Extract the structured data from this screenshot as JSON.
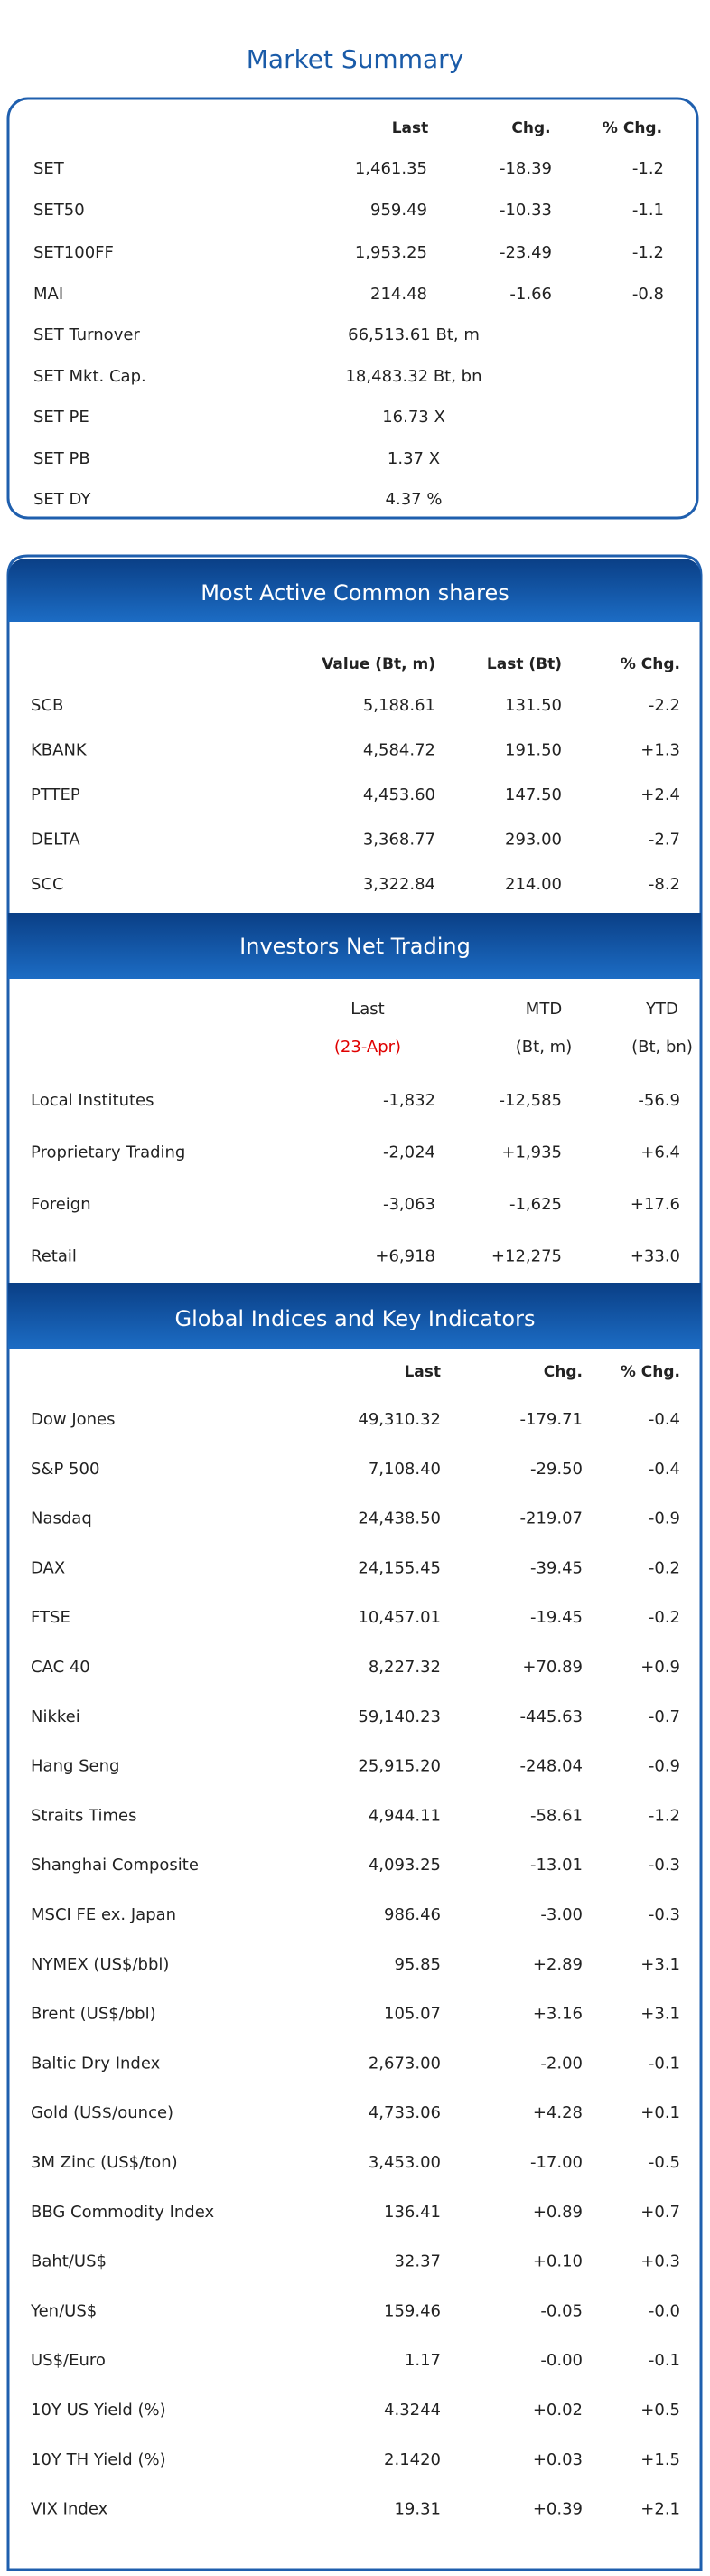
{
  "market_summary": {
    "title": "Market Summary",
    "headers": [
      "Last",
      "Chg.",
      "% Chg."
    ],
    "rows": [
      [
        "SET",
        "1,461.35",
        "-18.39",
        "-1.2"
      ],
      [
        "SET50",
        "959.49",
        "-10.33",
        "-1.1"
      ],
      [
        "SET100FF",
        "1,953.25",
        "-23.49",
        "-1.2"
      ],
      [
        "MAI",
        "214.48",
        "-1.66",
        "-0.8"
      ]
    ],
    "extra_rows": [
      [
        "SET Turnover",
        "66,513.61 Bt, m"
      ],
      [
        "SET Mkt. Cap.",
        "18,483.32 Bt, bn"
      ],
      [
        "SET PE",
        "16.73 X"
      ],
      [
        "SET PB",
        "1.37 X"
      ],
      [
        "SET DY",
        "4.37 %"
      ]
    ]
  },
  "most_active": {
    "title": "Most Active Common shares",
    "headers": [
      "Value (Bt, m)",
      "Last (Bt)",
      "% Chg."
    ],
    "rows": [
      [
        "SCB",
        "5,188.61",
        "131.50",
        "-2.2"
      ],
      [
        "KBANK",
        "4,584.72",
        "191.50",
        "+1.3"
      ],
      [
        "PTTEP",
        "4,453.60",
        "147.50",
        "+2.4"
      ],
      [
        "DELTA",
        "3,368.77",
        "293.00",
        "-2.7"
      ],
      [
        "SCC",
        "3,322.84",
        "214.00",
        "-8.2"
      ]
    ]
  },
  "investors": {
    "title": "Investors Net Trading",
    "headers": [
      "Last",
      "MTD",
      "YTD"
    ],
    "subheaders": [
      "(23-Apr)",
      "(Bt, m)",
      "(Bt, bn)"
    ],
    "rows": [
      [
        "Local Institutes",
        "-1,832",
        "-12,585",
        "-56.9"
      ],
      [
        "Proprietary Trading",
        "-2,024",
        "+1,935",
        "+6.4"
      ],
      [
        "Foreign",
        "-3,063",
        "-1,625",
        "+17.6"
      ],
      [
        "Retail",
        "+6,918",
        "+12,275",
        "+33.0"
      ]
    ]
  },
  "global": {
    "title": "Global Indices and Key Indicators",
    "headers": [
      "Last",
      "Chg.",
      "% Chg."
    ],
    "rows": [
      [
        "Dow Jones",
        "49,310.32",
        "-179.71",
        "-0.4"
      ],
      [
        "S&P 500",
        "7,108.40",
        "-29.50",
        "-0.4"
      ],
      [
        "Nasdaq",
        "24,438.50",
        "-219.07",
        "-0.9"
      ],
      [
        "DAX",
        "24,155.45",
        "-39.45",
        "-0.2"
      ],
      [
        "FTSE",
        "10,457.01",
        "-19.45",
        "-0.2"
      ],
      [
        "CAC 40",
        "8,227.32",
        "+70.89",
        "+0.9"
      ],
      [
        "Nikkei",
        "59,140.23",
        "-445.63",
        "-0.7"
      ],
      [
        "Hang Seng",
        "25,915.20",
        "-248.04",
        "-0.9"
      ],
      [
        "Straits Times",
        "4,944.11",
        "-58.61",
        "-1.2"
      ],
      [
        "Shanghai Composite",
        "4,093.25",
        "-13.01",
        "-0.3"
      ],
      [
        "MSCI FE ex. Japan",
        "986.46",
        "-3.00",
        "-0.3"
      ],
      [
        "NYMEX (US$/bbl)",
        "95.85",
        "+2.89",
        "+3.1"
      ],
      [
        "Brent (US$/bbl)",
        "105.07",
        "+3.16",
        "+3.1"
      ],
      [
        "Baltic Dry Index",
        "2,673.00",
        "-2.00",
        "-0.1"
      ],
      [
        "Gold (US$/ounce)",
        "4,733.06",
        "+4.28",
        "+0.1"
      ],
      [
        "3M Zinc (US$/ton)",
        "3,453.00",
        "-17.00",
        "-0.5"
      ],
      [
        "BBG Commodity Index",
        "136.41",
        "+0.89",
        "+0.7"
      ],
      [
        "Baht/US$",
        "32.37",
        "+0.10",
        "+0.3"
      ],
      [
        "Yen/US$",
        "159.46",
        "-0.05",
        "-0.0"
      ],
      [
        "US$/Euro",
        "1.17",
        "-0.00",
        "-0.1"
      ],
      [
        "10Y US Yield (%)",
        "4.3244",
        "+0.02",
        "+0.5"
      ],
      [
        "10Y TH Yield (%)",
        "2.1420",
        "+0.03",
        "+1.5"
      ],
      [
        "VIX Index",
        "19.31",
        "+0.39",
        "+2.1"
      ]
    ]
  }
}
